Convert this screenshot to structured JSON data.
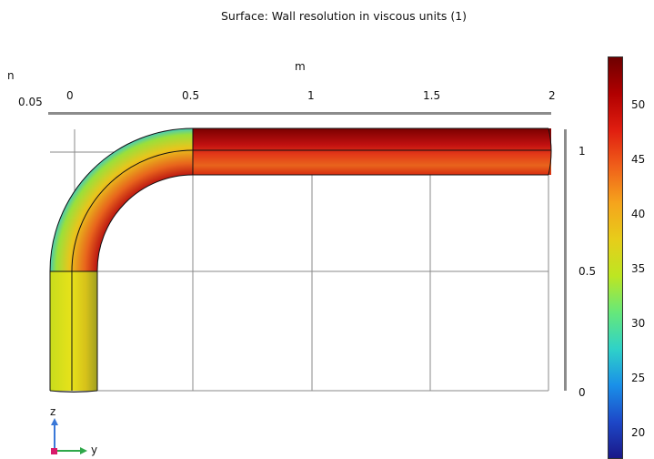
{
  "plot": {
    "title": "Surface: Wall resolution in viscous units (1)"
  },
  "axes": {
    "left_unit_label": "n",
    "top_unit_label": "m",
    "left_value": "0.05",
    "top_ticks": [
      "0",
      "0.5",
      "1",
      "1.5",
      "2"
    ],
    "right_ticks": [
      "1",
      "0.5",
      "0"
    ]
  },
  "triad": {
    "z_label": "z",
    "y_label": "y",
    "z_color": "#3a78d8",
    "y_color": "#2fa84a",
    "origin_color": "#d81a6a"
  },
  "colorbar": {
    "ticks": [
      "50",
      "45",
      "40",
      "35",
      "30",
      "25",
      "20"
    ],
    "colors": [
      "#6e0000",
      "#b10000",
      "#e01e10",
      "#f0601a",
      "#f5a41c",
      "#e7cd1a",
      "#bde622",
      "#66e87a",
      "#2fd2c8",
      "#1a90e8",
      "#1d48c8",
      "#1a1888"
    ]
  }
}
